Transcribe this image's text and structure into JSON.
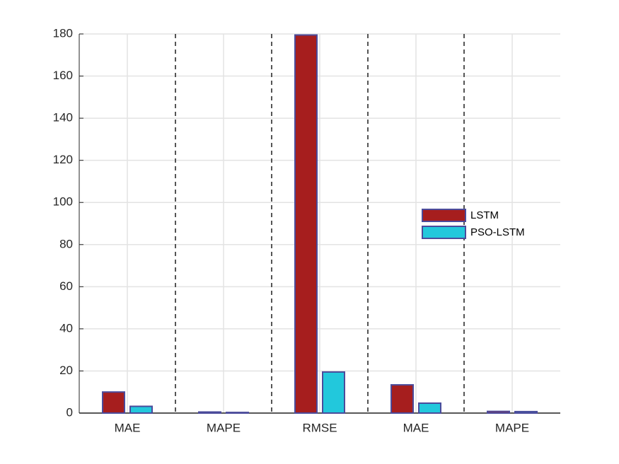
{
  "chart_data": {
    "type": "bar",
    "categories": [
      "MAE",
      "MAPE",
      "RMSE",
      "MAE",
      "MAPE"
    ],
    "series": [
      {
        "name": "LSTM",
        "color": "#a61e1e",
        "values": [
          10,
          0.5,
          179.5,
          13.4,
          0.8
        ]
      },
      {
        "name": "PSO-LSTM",
        "color": "#22c8dc",
        "values": [
          3.2,
          0.3,
          19.5,
          4.7,
          0.7
        ]
      }
    ],
    "ylim": [
      0,
      180
    ],
    "yticks": [
      0,
      20,
      40,
      60,
      80,
      100,
      120,
      140,
      160,
      180
    ],
    "grid": true,
    "legend": "right"
  }
}
